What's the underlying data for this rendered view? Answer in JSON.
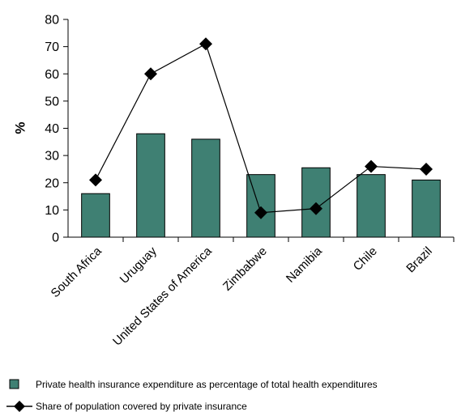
{
  "chart_data": {
    "type": "bar",
    "categories": [
      "South Africa",
      "Uruguay",
      "United States of America",
      "Zimbabwe",
      "Namibia",
      "Chile",
      "Brazil"
    ],
    "series": [
      {
        "name": "Private health insurance expenditure as percentage of total health expenditures",
        "type": "bar",
        "values": [
          16,
          38,
          36,
          23,
          25.5,
          23,
          21
        ]
      },
      {
        "name": "Share of population covered by private insurance",
        "type": "line",
        "values": [
          21,
          60,
          71,
          9,
          10.5,
          26,
          25
        ]
      }
    ],
    "title": "",
    "xlabel": "",
    "ylabel": "%",
    "ylim": [
      0,
      80
    ],
    "yticks": [
      "0",
      "10",
      "20",
      "30",
      "40",
      "50",
      "60",
      "70",
      "80"
    ],
    "grid": false,
    "legend_position": "bottom-left"
  },
  "colors": {
    "bar": "#3f8073",
    "marker": "#000000"
  }
}
